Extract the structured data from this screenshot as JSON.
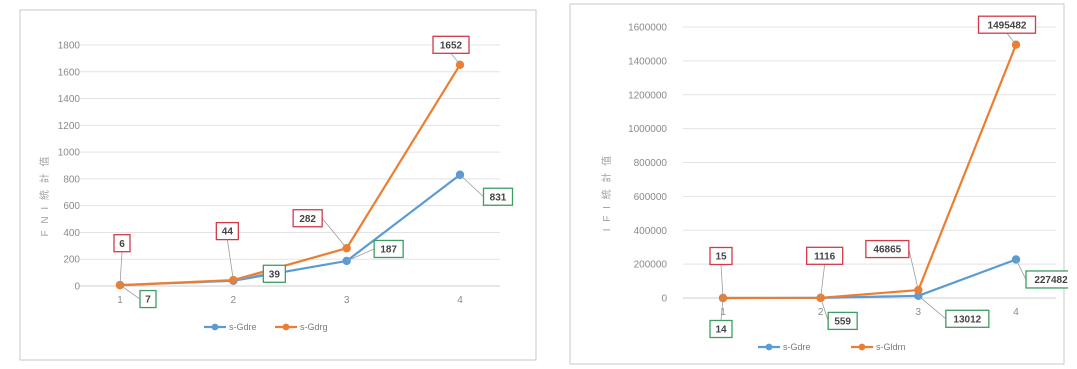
{
  "colors": {
    "series_blue": "#5b9bd5",
    "series_orange": "#ed7d31",
    "label_box_blue": "#3f9c62",
    "label_box_orange": "#d23a4a"
  },
  "chart_data": [
    {
      "type": "line",
      "categories": [
        "1",
        "2",
        "3",
        "4"
      ],
      "ylabel": "F N I 統 計 值",
      "ylim": [
        0,
        1800
      ],
      "yticks": [
        0,
        200,
        400,
        600,
        800,
        1000,
        1200,
        1400,
        1600,
        1800
      ],
      "ytick_labels": [
        "0",
        "200",
        "400",
        "600",
        "800",
        "1000",
        "1200",
        "1400",
        "1600",
        "1800"
      ],
      "grid": true,
      "legend_position": "bottom",
      "series": [
        {
          "name": "s-Gdre",
          "color": "#5b9bd5",
          "values": [
            7,
            39,
            187,
            831
          ],
          "labels": [
            "7",
            "39",
            "187",
            "831"
          ]
        },
        {
          "name": "s-Gdrg",
          "color": "#ed7d31",
          "values": [
            6,
            44,
            282,
            1652
          ],
          "labels": [
            "6",
            "44",
            "282",
            "1652"
          ]
        }
      ]
    },
    {
      "type": "line",
      "categories": [
        "1",
        "2",
        "3",
        "4"
      ],
      "ylabel": "I F I 統 計 值",
      "ylim": [
        0,
        1600000
      ],
      "yticks": [
        0,
        200000,
        400000,
        600000,
        800000,
        1000000,
        1200000,
        1400000,
        1600000
      ],
      "ytick_labels": [
        "0",
        "200000",
        "400000",
        "600000",
        "800000",
        "1000000",
        "1200000",
        "1400000",
        "1600000"
      ],
      "grid": true,
      "legend_position": "bottom",
      "series": [
        {
          "name": "s-Gdre",
          "color": "#5b9bd5",
          "values": [
            14,
            559,
            13012,
            227482
          ],
          "labels": [
            "14",
            "559",
            "13012",
            "227482"
          ]
        },
        {
          "name": "s-Gldrn",
          "color": "#ed7d31",
          "values": [
            15,
            1116,
            46865,
            1495482
          ],
          "labels": [
            "15",
            "1116",
            "46865",
            "1495482"
          ]
        }
      ]
    }
  ]
}
